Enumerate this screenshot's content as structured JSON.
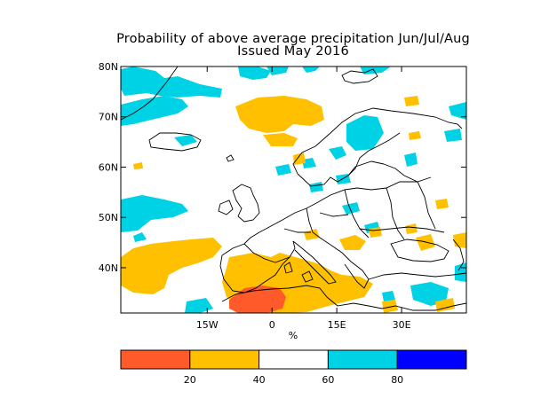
{
  "title": {
    "line1": "Probability of above average precipitation Jun/Jul/Aug",
    "line2": "Issued May 2016"
  },
  "map": {
    "region": "Europe / North Atlantic",
    "lon_range": [
      -35,
      45
    ],
    "lat_range": [
      31,
      80
    ],
    "lat_ticks": [
      {
        "value": 80,
        "label": "80N"
      },
      {
        "value": 70,
        "label": "70N"
      },
      {
        "value": 60,
        "label": "60N"
      },
      {
        "value": 50,
        "label": "50N"
      },
      {
        "value": 40,
        "label": "40N"
      }
    ],
    "lon_ticks": [
      {
        "value": -15,
        "label": "15W"
      },
      {
        "value": 0,
        "label": "0"
      },
      {
        "value": 15,
        "label": "15E"
      },
      {
        "value": 30,
        "label": "30E"
      }
    ],
    "unit_label": "%"
  },
  "colorbar": {
    "bins": [
      {
        "from": 0,
        "to": 20,
        "color": "#ff5a2a"
      },
      {
        "from": 20,
        "to": 40,
        "color": "#ffc000"
      },
      {
        "from": 40,
        "to": 60,
        "color": "#ffffff"
      },
      {
        "from": 60,
        "to": 80,
        "color": "#00d2e6"
      },
      {
        "from": 80,
        "to": 100,
        "color": "#0000ff"
      }
    ],
    "labels": [
      "20",
      "40",
      "60",
      "80"
    ]
  },
  "colors": {
    "dry_strong": "#ff5a2a",
    "dry": "#ffc000",
    "wet": "#00d2e6",
    "wet_strong": "#0000ff",
    "coast": "#000000"
  }
}
